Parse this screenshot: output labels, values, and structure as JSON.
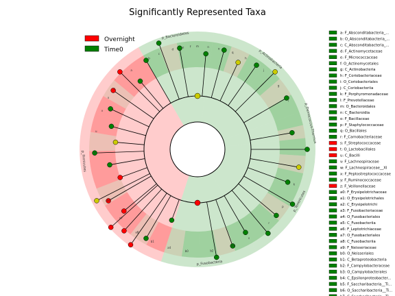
{
  "chart_data": {
    "type": "cladogram",
    "title": "Significantly Represented Taxa",
    "legend": [
      {
        "name": "Overnight",
        "color": "#ff0000"
      },
      {
        "name": "Time0",
        "color": "#008000"
      }
    ],
    "colors": {
      "Overnight": "#ff0000",
      "Time0": "#008000",
      "Overnight_light": "#ff4040",
      "Time0_light": "#4aa84a",
      "tan": "#c8a88a",
      "none": "#cccc00"
    },
    "phyla": [
      {
        "label": "p_Bacteroidetes",
        "group": "Time0",
        "start": -30,
        "end": 8
      },
      {
        "label": "p_Actinobacteria",
        "group": "Time0",
        "start": 8,
        "end": 70
      },
      {
        "label": "p_Deinococcus-Thermus",
        "group": "Time0",
        "start": 70,
        "end": 84
      },
      {
        "label": "p_Fusobacteria",
        "group": "Time0",
        "start": 150,
        "end": 198
      },
      {
        "label": "p_Tenericutes",
        "group": "Time0",
        "start": 84,
        "end": 150
      },
      {
        "label": "p_Firmicutes",
        "group": "Overnight",
        "start": 198,
        "end": 330
      }
    ],
    "clade_labels": [
      {
        "text": "a",
        "angle": -40
      },
      {
        "text": "b",
        "angle": -28
      },
      {
        "text": "c",
        "angle": -22
      },
      {
        "text": "d",
        "angle": -14
      },
      {
        "text": "e",
        "angle": -8
      },
      {
        "text": "f",
        "angle": -4
      },
      {
        "text": "m",
        "angle": 0
      },
      {
        "text": "n",
        "angle": 6
      },
      {
        "text": "o",
        "angle": 12
      },
      {
        "text": "q",
        "angle": 20
      },
      {
        "text": "h",
        "angle": 28
      },
      {
        "text": "j",
        "angle": 40
      },
      {
        "text": "g",
        "angle": 52
      },
      {
        "text": "i",
        "angle": 62
      },
      {
        "text": "k",
        "angle": 110
      },
      {
        "text": "p",
        "angle": 124
      },
      {
        "text": "r",
        "angle": 136
      },
      {
        "text": "s",
        "angle": 150
      },
      {
        "text": "a9",
        "angle": 160
      },
      {
        "text": "b2",
        "angle": 172
      },
      {
        "text": "b0",
        "angle": 186
      },
      {
        "text": "a4",
        "angle": 196
      },
      {
        "text": "b1",
        "angle": 206
      },
      {
        "text": "a8",
        "angle": 216
      },
      {
        "text": "a7",
        "angle": 228
      },
      {
        "text": "b4",
        "angle": 240
      },
      {
        "text": "w",
        "angle": 268
      },
      {
        "text": "u",
        "angle": 280
      },
      {
        "text": "v",
        "angle": 292
      },
      {
        "text": "x",
        "angle": 300
      },
      {
        "text": "z",
        "angle": 306
      }
    ],
    "key": [
      {
        "label": "a: F_Absconditabacteria_...",
        "group": "Time0"
      },
      {
        "label": "b: O_Absconditabacteria_...",
        "group": "Time0"
      },
      {
        "label": "c: C_Absconditabacteria_...",
        "group": "Time0"
      },
      {
        "label": "d: F_Actinomycetaceae",
        "group": "Time0"
      },
      {
        "label": "e: F_Micrococcaceae",
        "group": "Time0"
      },
      {
        "label": "f: O_Actinomycetales",
        "group": "Time0"
      },
      {
        "label": "g: C_Actinobacteria",
        "group": "Time0"
      },
      {
        "label": "h: F_Coriobacteriaceae",
        "group": "Time0"
      },
      {
        "label": "i: O_Coriobacteriales",
        "group": "Time0"
      },
      {
        "label": "j: C_Coriobacteriia",
        "group": "Time0"
      },
      {
        "label": "k: F_Porphyromonadaceae",
        "group": "Time0"
      },
      {
        "label": "l: F_Prevotellaceae",
        "group": "Time0"
      },
      {
        "label": "m: O_Bacteroidales",
        "group": "Time0"
      },
      {
        "label": "n: C_Bacteroidia",
        "group": "Time0"
      },
      {
        "label": "o: F_Bacillaceae",
        "group": "Time0"
      },
      {
        "label": "p: F_Staphylococcaceae",
        "group": "Time0"
      },
      {
        "label": "q: O_Bacillales",
        "group": "Time0"
      },
      {
        "label": "r: F_Carnobacteriaceae",
        "group": "Time0"
      },
      {
        "label": "s: F_Streptococcaceae",
        "group": "Overnight"
      },
      {
        "label": "t: O_Lactobacillales",
        "group": "Overnight"
      },
      {
        "label": "u: C_Bacilli",
        "group": "Overnight"
      },
      {
        "label": "v: F_Lachnospiraceae",
        "group": "Time0"
      },
      {
        "label": "w: F_Lachnospiraceae__XI",
        "group": "Time0"
      },
      {
        "label": "x: F_Peptostreptococcaceae",
        "group": "Time0"
      },
      {
        "label": "y: F_Ruminococcaceae",
        "group": "Time0"
      },
      {
        "label": "z: F_Veillonellaceae",
        "group": "Overnight"
      },
      {
        "label": "a0: F_Erysipelotrichaceae",
        "group": "Time0"
      },
      {
        "label": "a1: O_Erysipelotrichales",
        "group": "Time0"
      },
      {
        "label": "a2: C_Erysipelotrichi",
        "group": "Time0"
      },
      {
        "label": "a3: F_Fusobacteriaceae",
        "group": "Time0"
      },
      {
        "label": "a4: O_Fusobacteriales",
        "group": "Time0"
      },
      {
        "label": "a5: C_Fusobacteriia",
        "group": "Time0"
      },
      {
        "label": "a6: F_Leptotrichiaceae",
        "group": "Time0"
      },
      {
        "label": "a7: O_Fusobacteriales",
        "group": "Time0"
      },
      {
        "label": "a8: C_Fusobacteriia",
        "group": "Time0"
      },
      {
        "label": "a9: F_Neisseriaceae",
        "group": "Time0"
      },
      {
        "label": "b0: O_Neisseriales",
        "group": "Time0"
      },
      {
        "label": "b1: C_Betaproteobacteria",
        "group": "Time0"
      },
      {
        "label": "b2: F_Campylobacteraceae",
        "group": "Time0"
      },
      {
        "label": "b3: O_Campylobacterales",
        "group": "Time0"
      },
      {
        "label": "b4: C_Epsilonproteobacter...",
        "group": "Time0"
      },
      {
        "label": "b5: F_Saccharibacteria__Ti...",
        "group": "Time0"
      },
      {
        "label": "b6: O_Saccharibacteria__Ti...",
        "group": "Time0"
      },
      {
        "label": "b7: C_Saccharibacteria__Ti...",
        "group": "Time0"
      }
    ],
    "nodes": [
      {
        "angle": 180,
        "r": 78,
        "group": "Overnight"
      },
      {
        "angle": 0,
        "r": 78,
        "group": "none"
      },
      {
        "angle": 250,
        "r": 120,
        "group": "Overnight"
      },
      {
        "angle": 230,
        "r": 140,
        "group": "Overnight"
      },
      {
        "angle": 222,
        "r": 160,
        "group": "Overnight"
      },
      {
        "angle": 215,
        "r": 170,
        "group": "Overnight"
      },
      {
        "angle": 228,
        "r": 170,
        "group": "Overnight"
      },
      {
        "angle": 240,
        "r": 150,
        "group": "Overnight"
      },
      {
        "angle": 243,
        "r": 165,
        "group": "none"
      },
      {
        "angle": 268,
        "r": 150,
        "group": "Time0"
      },
      {
        "angle": 260,
        "r": 130,
        "group": "Time0"
      },
      {
        "angle": 275,
        "r": 120,
        "group": "none"
      },
      {
        "angle": 285,
        "r": 130,
        "group": "Time0"
      },
      {
        "angle": 295,
        "r": 140,
        "group": "Time0"
      },
      {
        "angle": 305,
        "r": 150,
        "group": "Overnight"
      },
      {
        "angle": 315,
        "r": 160,
        "group": "Overnight"
      },
      {
        "angle": 320,
        "r": 130,
        "group": "Time0"
      },
      {
        "angle": 330,
        "r": 150,
        "group": "Time0"
      },
      {
        "angle": 340,
        "r": 165,
        "group": "Time0"
      },
      {
        "angle": 350,
        "r": 150,
        "group": "Time0"
      },
      {
        "angle": 5,
        "r": 140,
        "group": "Time0"
      },
      {
        "angle": 15,
        "r": 150,
        "group": "Time0"
      },
      {
        "angle": 25,
        "r": 140,
        "group": "none"
      },
      {
        "angle": 35,
        "r": 150,
        "group": "Time0"
      },
      {
        "angle": 45,
        "r": 160,
        "group": "none"
      },
      {
        "angle": 60,
        "r": 150,
        "group": "Time0"
      },
      {
        "angle": 80,
        "r": 140,
        "group": "Time0"
      },
      {
        "angle": 90,
        "r": 160,
        "group": "Time0"
      },
      {
        "angle": 100,
        "r": 150,
        "group": "none"
      },
      {
        "angle": 110,
        "r": 140,
        "group": "Time0"
      },
      {
        "angle": 120,
        "r": 160,
        "group": "Time0"
      },
      {
        "angle": 130,
        "r": 150,
        "group": "Time0"
      },
      {
        "angle": 140,
        "r": 160,
        "group": "Time0"
      },
      {
        "angle": 150,
        "r": 140,
        "group": "Time0"
      },
      {
        "angle": 160,
        "r": 150,
        "group": "Time0"
      },
      {
        "angle": 170,
        "r": 160,
        "group": "Time0"
      },
      {
        "angle": 200,
        "r": 110,
        "group": "Time0"
      },
      {
        "angle": 210,
        "r": 150,
        "group": "Time0"
      }
    ]
  }
}
